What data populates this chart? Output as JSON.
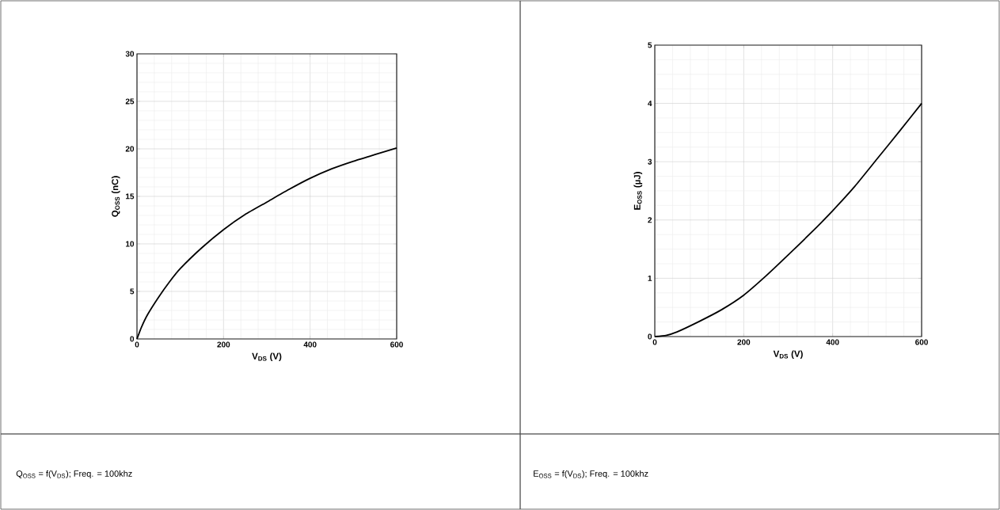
{
  "chart_data": [
    {
      "type": "line",
      "xlabel": "V$_{DS}$ (V)",
      "ylabel": "Q$_{OSS}$ (nC)",
      "xlim": [
        0,
        600
      ],
      "ylim": [
        0,
        30
      ],
      "xticks": [
        0,
        200,
        400,
        600
      ],
      "yticks": [
        0,
        5,
        10,
        15,
        20,
        25,
        30
      ],
      "grid": true,
      "x": [
        0,
        10,
        25,
        50,
        75,
        100,
        150,
        200,
        250,
        300,
        350,
        400,
        450,
        500,
        550,
        600
      ],
      "series": [
        {
          "color": "#000000",
          "values": [
            0,
            1.2,
            2.6,
            4.4,
            6.0,
            7.4,
            9.6,
            11.5,
            13.1,
            14.4,
            15.7,
            16.9,
            17.9,
            18.7,
            19.4,
            20.1
          ]
        }
      ],
      "annotations": [
        "Q$_{OSS}$ = f(V$_{DS}$); Freq. = 100khz"
      ]
    },
    {
      "type": "line",
      "xlabel": "V$_{DS}$ (V)",
      "ylabel": "E$_{OSS}$ (µJ)",
      "xlim": [
        0,
        600
      ],
      "ylim": [
        0,
        5
      ],
      "xticks": [
        0,
        200,
        400,
        600
      ],
      "yticks": [
        0,
        1,
        2,
        3,
        4,
        5
      ],
      "grid": true,
      "x": [
        0,
        25,
        50,
        100,
        150,
        200,
        250,
        300,
        350,
        400,
        450,
        500,
        550,
        600
      ],
      "series": [
        {
          "color": "#000000",
          "values": [
            0,
            0.02,
            0.08,
            0.26,
            0.46,
            0.71,
            1.04,
            1.4,
            1.77,
            2.16,
            2.58,
            3.05,
            3.52,
            4.0
          ]
        }
      ],
      "annotations": [
        "E$_{OSS}$ = f(V$_{DS}$); Freq. = 100khz"
      ]
    }
  ]
}
